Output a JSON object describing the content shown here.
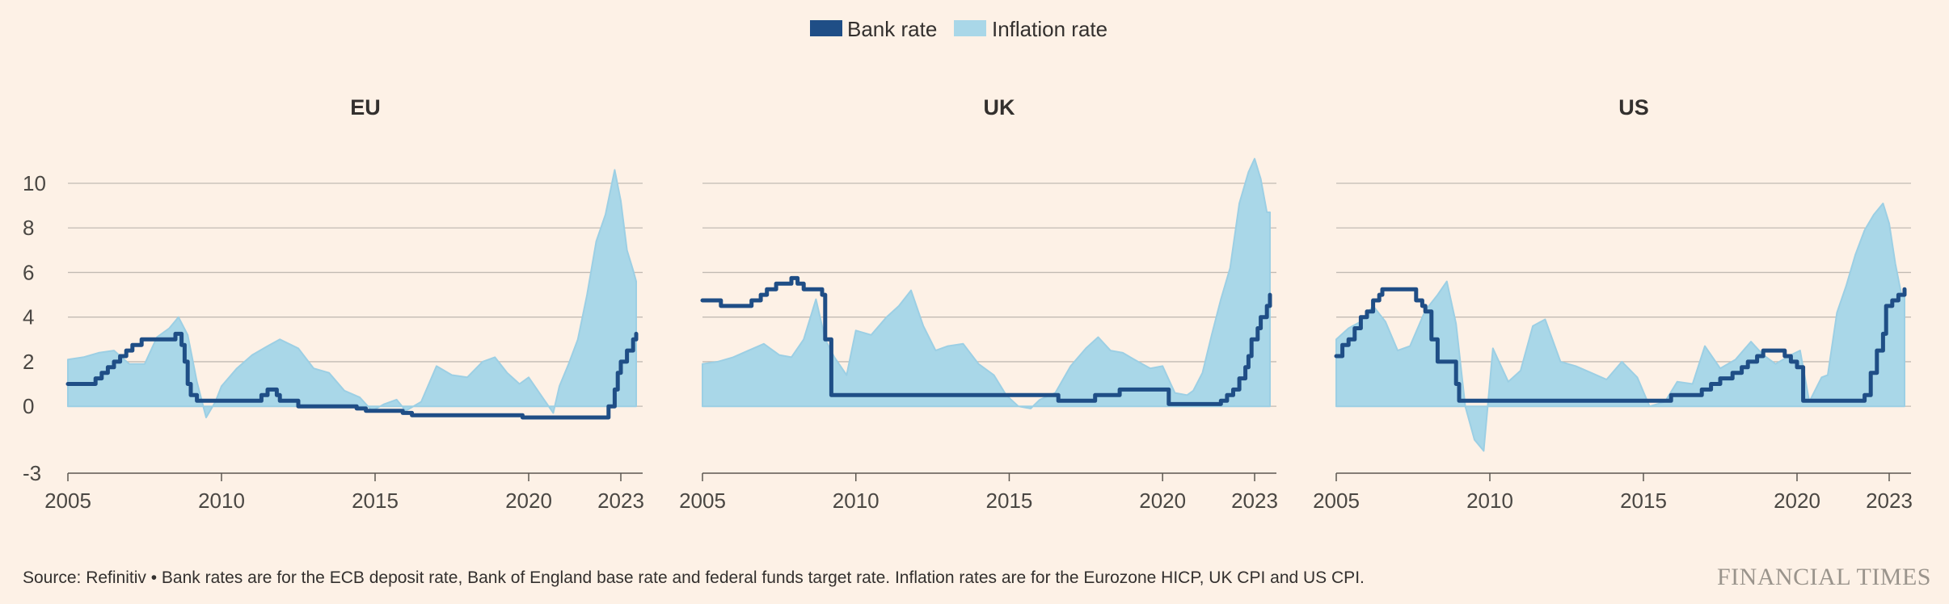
{
  "colors": {
    "background": "#fdf1e6",
    "bank": "#1f4e86",
    "inflation": "#a9d7e8",
    "inflation_edge": "#9ccfe4",
    "grid": "#c2bbb3",
    "axis": "#5c5750"
  },
  "legend": {
    "bank_label": "Bank rate",
    "inflation_label": "Inflation rate"
  },
  "footer": {
    "source": "Source: Refinitiv • Bank rates are for the ECB deposit rate, Bank of England base rate and federal funds target rate. Inflation rates are for the Eurozone HICP, UK CPI and US CPI.",
    "logo": "FINANCIAL TIMES"
  },
  "chart_data": [
    {
      "type": "area",
      "title": "EU",
      "xlim": [
        2005,
        2023.5
      ],
      "ylim": [
        -3,
        11
      ],
      "y_ticks": [
        -3,
        0,
        2,
        4,
        6,
        8,
        10
      ],
      "x_ticks": [
        2005,
        2010,
        2015,
        2020,
        2023
      ],
      "series": [
        {
          "name": "Bank rate",
          "kind": "step",
          "x": [
            2005,
            2005.9,
            2006.1,
            2006.3,
            2006.5,
            2006.7,
            2006.9,
            2007.1,
            2007.4,
            2007.8,
            2008.5,
            2008.7,
            2008.8,
            2008.9,
            2009.0,
            2009.2,
            2009.4,
            2011.3,
            2011.5,
            2011.8,
            2011.9,
            2012.5,
            2012.6,
            2014.4,
            2014.7,
            2015.9,
            2016.2,
            2019.7,
            2019.8,
            2022.5,
            2022.6,
            2022.8,
            2022.9,
            2023.0,
            2023.2,
            2023.4,
            2023.5
          ],
          "y": [
            1.0,
            1.25,
            1.5,
            1.75,
            2.0,
            2.25,
            2.5,
            2.75,
            3.0,
            3.0,
            3.25,
            2.75,
            2.0,
            1.0,
            0.5,
            0.25,
            0.25,
            0.5,
            0.75,
            0.5,
            0.25,
            0.0,
            0.0,
            -0.1,
            -0.2,
            -0.3,
            -0.4,
            -0.4,
            -0.5,
            -0.5,
            0.0,
            0.75,
            1.5,
            2.0,
            2.5,
            3.0,
            3.25
          ]
        },
        {
          "name": "Inflation rate",
          "kind": "area",
          "x": [
            2005,
            2005.5,
            2006,
            2006.5,
            2007,
            2007.5,
            2007.9,
            2008.3,
            2008.6,
            2008.9,
            2009.2,
            2009.5,
            2009.8,
            2010,
            2010.5,
            2011,
            2011.5,
            2011.9,
            2012.5,
            2013,
            2013.5,
            2014,
            2014.5,
            2014.9,
            2015.3,
            2015.7,
            2016,
            2016.5,
            2017,
            2017.5,
            2018,
            2018.5,
            2018.9,
            2019.3,
            2019.7,
            2020,
            2020.5,
            2020.8,
            2021,
            2021.3,
            2021.6,
            2021.9,
            2022.2,
            2022.5,
            2022.8,
            2023.0,
            2023.2,
            2023.4,
            2023.5
          ],
          "y": [
            2.1,
            2.2,
            2.4,
            2.5,
            1.9,
            1.9,
            3.1,
            3.5,
            4.0,
            3.2,
            1.1,
            -0.5,
            0.2,
            0.9,
            1.7,
            2.3,
            2.7,
            3.0,
            2.6,
            1.7,
            1.5,
            0.7,
            0.4,
            -0.2,
            0.1,
            0.3,
            -0.2,
            0.2,
            1.8,
            1.4,
            1.3,
            2.0,
            2.2,
            1.5,
            1.0,
            1.3,
            0.3,
            -0.3,
            0.9,
            1.9,
            3.0,
            5.0,
            7.4,
            8.6,
            10.6,
            9.2,
            7.0,
            6.1,
            5.6
          ]
        }
      ]
    },
    {
      "type": "area",
      "title": "UK",
      "xlim": [
        2005,
        2023.5
      ],
      "ylim": [
        -3,
        11
      ],
      "y_ticks": [
        -3,
        0,
        2,
        4,
        6,
        8,
        10
      ],
      "x_ticks": [
        2005,
        2010,
        2015,
        2020,
        2023
      ],
      "series": [
        {
          "name": "Bank rate",
          "kind": "step",
          "x": [
            2005,
            2005.6,
            2006.6,
            2006.9,
            2007.1,
            2007.4,
            2007.9,
            2008.1,
            2008.3,
            2008.9,
            2009.0,
            2009.2,
            2016.6,
            2017.8,
            2018.6,
            2020.2,
            2021.9,
            2022.1,
            2022.3,
            2022.5,
            2022.7,
            2022.8,
            2022.9,
            2023.1,
            2023.2,
            2023.4,
            2023.5
          ],
          "y": [
            4.75,
            4.5,
            4.75,
            5.0,
            5.25,
            5.5,
            5.75,
            5.5,
            5.25,
            5.0,
            3.0,
            0.5,
            0.25,
            0.5,
            0.75,
            0.1,
            0.25,
            0.5,
            0.75,
            1.25,
            1.75,
            2.25,
            3.0,
            3.5,
            4.0,
            4.5,
            5.0
          ]
        },
        {
          "name": "Inflation rate",
          "kind": "area",
          "x": [
            2005,
            2005.5,
            2006,
            2006.5,
            2007,
            2007.5,
            2007.9,
            2008.3,
            2008.7,
            2009.0,
            2009.3,
            2009.7,
            2010,
            2010.5,
            2011,
            2011.4,
            2011.8,
            2012.2,
            2012.6,
            2013,
            2013.5,
            2014,
            2014.5,
            2014.9,
            2015.3,
            2015.7,
            2016,
            2016.5,
            2017,
            2017.5,
            2017.9,
            2018.3,
            2018.7,
            2019.2,
            2019.6,
            2020,
            2020.4,
            2020.8,
            2021,
            2021.3,
            2021.6,
            2021.9,
            2022.2,
            2022.5,
            2022.8,
            2023.0,
            2023.2,
            2023.4,
            2023.5
          ],
          "y": [
            1.9,
            2.0,
            2.2,
            2.5,
            2.8,
            2.3,
            2.2,
            3.0,
            4.8,
            3.0,
            2.2,
            1.4,
            3.4,
            3.2,
            4.0,
            4.5,
            5.2,
            3.6,
            2.5,
            2.7,
            2.8,
            1.9,
            1.4,
            0.5,
            0.0,
            -0.1,
            0.3,
            0.6,
            1.8,
            2.6,
            3.1,
            2.5,
            2.4,
            2.0,
            1.7,
            1.8,
            0.6,
            0.5,
            0.7,
            1.5,
            3.2,
            4.8,
            6.2,
            9.1,
            10.5,
            11.1,
            10.2,
            8.7,
            8.7
          ]
        }
      ]
    },
    {
      "type": "area",
      "title": "US",
      "xlim": [
        2005,
        2023.5
      ],
      "ylim": [
        -3,
        11
      ],
      "y_ticks": [
        -3,
        0,
        2,
        4,
        6,
        8,
        10
      ],
      "x_ticks": [
        2005,
        2010,
        2015,
        2020,
        2023
      ],
      "series": [
        {
          "name": "Bank rate",
          "kind": "step",
          "x": [
            2005,
            2005.2,
            2005.4,
            2005.6,
            2005.8,
            2006.0,
            2006.2,
            2006.4,
            2006.5,
            2007.6,
            2007.8,
            2007.9,
            2008.1,
            2008.3,
            2008.9,
            2009.0,
            2015.9,
            2016.9,
            2017.2,
            2017.5,
            2017.9,
            2018.2,
            2018.4,
            2018.7,
            2018.9,
            2019.6,
            2019.8,
            2020.0,
            2020.2,
            2022.2,
            2022.4,
            2022.6,
            2022.8,
            2022.9,
            2023.1,
            2023.3,
            2023.5
          ],
          "y": [
            2.25,
            2.75,
            3.0,
            3.5,
            4.0,
            4.25,
            4.75,
            5.0,
            5.25,
            4.75,
            4.5,
            4.25,
            3.0,
            2.0,
            1.0,
            0.25,
            0.5,
            0.75,
            1.0,
            1.25,
            1.5,
            1.75,
            2.0,
            2.25,
            2.5,
            2.25,
            2.0,
            1.75,
            0.25,
            0.5,
            1.5,
            2.5,
            3.25,
            4.5,
            4.75,
            5.0,
            5.25
          ]
        },
        {
          "name": "Inflation rate",
          "kind": "area",
          "x": [
            2005,
            2005.4,
            2005.8,
            2006.2,
            2006.6,
            2007.0,
            2007.4,
            2007.9,
            2008.3,
            2008.6,
            2008.9,
            2009.2,
            2009.5,
            2009.8,
            2010.1,
            2010.6,
            2011.0,
            2011.4,
            2011.8,
            2012.3,
            2012.8,
            2013.3,
            2013.8,
            2014.3,
            2014.8,
            2015.2,
            2015.7,
            2016.1,
            2016.6,
            2017.0,
            2017.5,
            2018.0,
            2018.5,
            2018.9,
            2019.3,
            2019.8,
            2020.1,
            2020.4,
            2020.8,
            2021.0,
            2021.3,
            2021.6,
            2021.9,
            2022.2,
            2022.5,
            2022.8,
            2023.0,
            2023.2,
            2023.4,
            2023.5
          ],
          "y": [
            3.0,
            3.5,
            3.8,
            4.5,
            3.8,
            2.5,
            2.7,
            4.3,
            5.0,
            5.6,
            3.7,
            0.0,
            -1.5,
            -2.0,
            2.6,
            1.1,
            1.6,
            3.6,
            3.9,
            2.0,
            1.8,
            1.5,
            1.2,
            2.0,
            1.3,
            0.0,
            0.2,
            1.1,
            1.0,
            2.7,
            1.7,
            2.1,
            2.9,
            2.3,
            1.9,
            2.3,
            2.5,
            0.2,
            1.3,
            1.4,
            4.2,
            5.4,
            6.8,
            7.9,
            8.6,
            9.1,
            8.2,
            6.4,
            5.0,
            4.9
          ]
        }
      ]
    }
  ]
}
